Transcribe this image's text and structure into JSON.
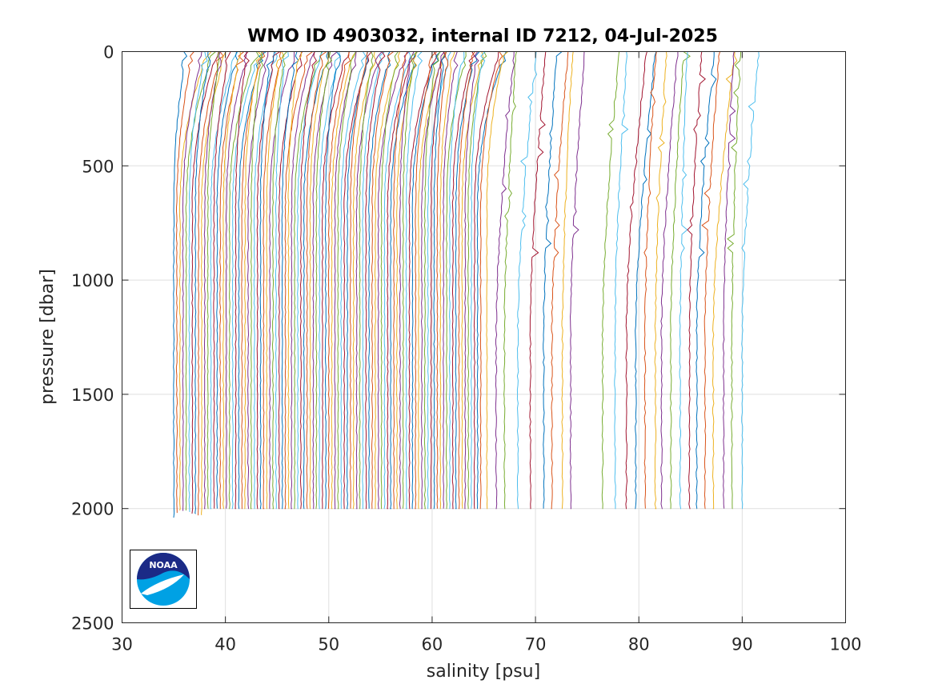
{
  "chart_data": {
    "type": "line",
    "title": "WMO ID 4903032, internal ID 7212, 04-Jul-2025",
    "xlabel": "salinity [psu]",
    "ylabel": "pressure [dbar]",
    "xlim": [
      30,
      100
    ],
    "ylim": [
      0,
      2500
    ],
    "y_reversed": true,
    "grid": true,
    "legend": "none",
    "xticks": [
      30,
      40,
      50,
      60,
      70,
      80,
      90,
      100
    ],
    "yticks": [
      0,
      500,
      1000,
      1500,
      2000,
      2500
    ],
    "xtick_labels": [
      "30",
      "40",
      "50",
      "60",
      "70",
      "80",
      "90",
      "100"
    ],
    "ytick_labels": [
      "0",
      "500",
      "1000",
      "1500",
      "2000",
      "2500"
    ],
    "series_colors": [
      "#0072bd",
      "#d95319",
      "#edb120",
      "#7e2f8e",
      "#77ac30",
      "#4dbeee",
      "#a2142f"
    ],
    "series_note": "many overlapping CTD salinity profiles, one per cycle; each profile is approximately vertical from 0 to about 2000 dbar",
    "profiles_bottom_salinity": [
      35.0,
      35.3,
      35.6,
      35.9,
      36.2,
      36.5,
      36.8,
      37.1,
      37.4,
      37.7,
      38.0,
      38.3,
      38.6,
      38.9,
      39.2,
      39.5,
      39.8,
      40.1,
      40.4,
      40.7,
      41.0,
      41.3,
      41.6,
      41.9,
      42.2,
      42.5,
      42.8,
      43.1,
      43.4,
      43.7,
      44.0,
      44.3,
      44.6,
      44.9,
      45.2,
      45.5,
      45.8,
      46.1,
      46.4,
      46.7,
      47.0,
      47.3,
      47.6,
      47.9,
      48.2,
      48.5,
      48.8,
      49.1,
      49.4,
      49.7,
      50.0,
      50.3,
      50.6,
      50.9,
      51.2,
      51.5,
      51.8,
      52.1,
      52.4,
      52.7,
      53.0,
      53.3,
      53.6,
      53.9,
      54.2,
      54.5,
      54.8,
      55.1,
      55.4,
      55.7,
      56.0,
      56.3,
      56.6,
      56.9,
      57.2,
      57.5,
      57.8,
      58.1,
      58.4,
      58.7,
      59.0,
      59.3,
      59.6,
      59.9,
      60.2,
      60.5,
      60.8,
      61.1,
      61.4,
      61.7,
      62.0,
      62.3,
      62.6,
      62.9,
      63.2,
      63.5,
      63.8,
      64.1,
      64.4,
      64.7,
      65.3,
      66.2,
      67.0,
      68.3,
      69.5,
      70.8,
      71.6,
      72.6,
      73.4,
      76.5,
      77.7,
      78.8,
      79.7,
      80.6,
      81.6,
      82.2,
      83.1,
      84.0,
      84.9,
      85.6,
      86.4,
      87.2,
      88.2,
      89.0,
      90.0
    ],
    "profiles_max_pressure": 2000,
    "noaa_logo": true
  }
}
